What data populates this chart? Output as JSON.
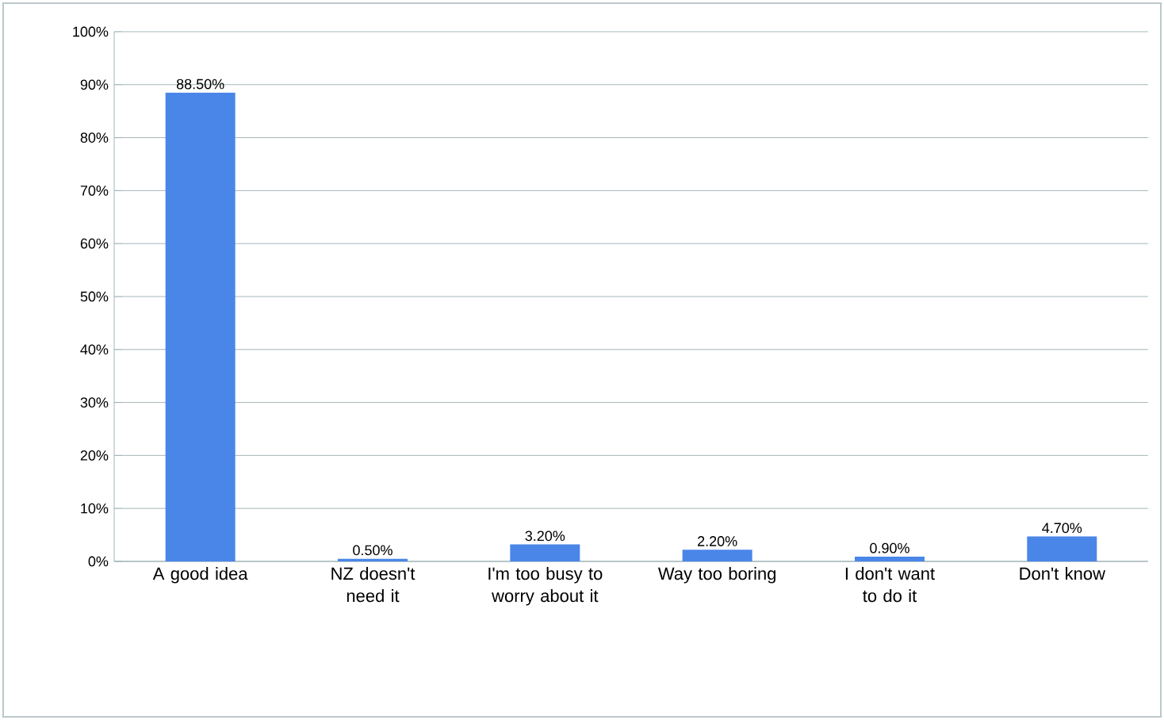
{
  "chart_data": {
    "type": "bar",
    "categories": [
      "A good idea",
      "NZ doesn't need it",
      "I'm too busy to worry about it",
      "Way too boring",
      "I don't want to do it",
      "Don't know"
    ],
    "values": [
      88.5,
      0.5,
      3.2,
      2.2,
      0.9,
      4.7
    ],
    "value_labels": [
      "88.50%",
      "0.50%",
      "3.20%",
      "2.20%",
      "0.90%",
      "4.70%"
    ],
    "color": "#4a86e8",
    "ylim": [
      0,
      100
    ],
    "yticks": [
      {
        "value": 0,
        "label": "0%"
      },
      {
        "value": 10,
        "label": "10%"
      },
      {
        "value": 20,
        "label": "20%"
      },
      {
        "value": 30,
        "label": "30%"
      },
      {
        "value": 40,
        "label": "40%"
      },
      {
        "value": 50,
        "label": "50%"
      },
      {
        "value": 60,
        "label": "60%"
      },
      {
        "value": 70,
        "label": "70%"
      },
      {
        "value": 80,
        "label": "80%"
      },
      {
        "value": 90,
        "label": "90%"
      },
      {
        "value": 100,
        "label": "100%"
      }
    ],
    "grid": "y"
  }
}
